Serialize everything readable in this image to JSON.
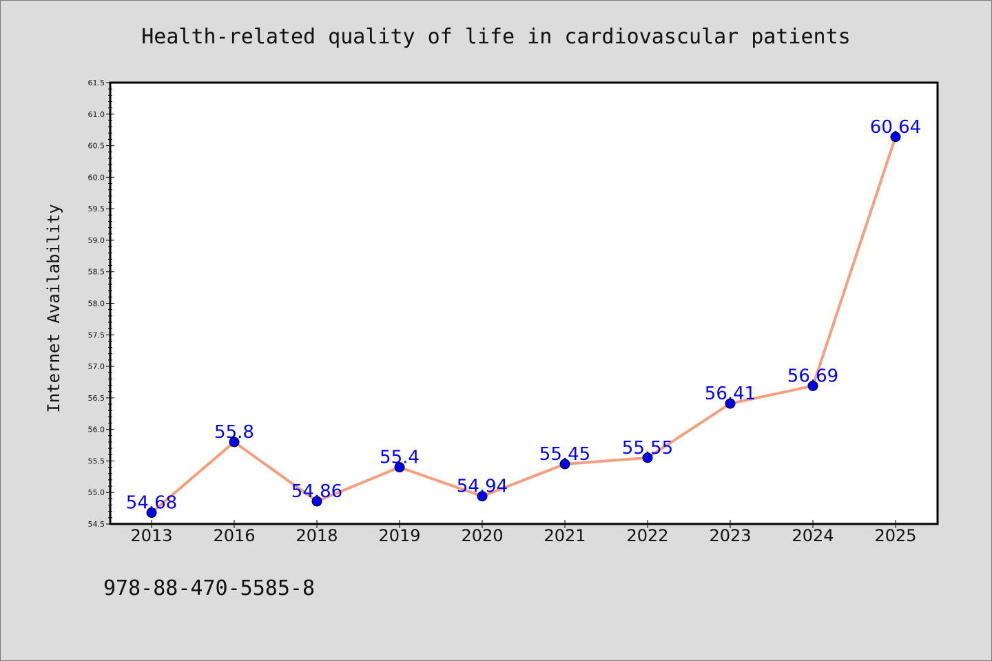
{
  "chart_data": {
    "type": "line",
    "title": "Health-related quality of life in cardiovascular patients",
    "xlabel": "",
    "ylabel": "Internet Availability",
    "categories": [
      "2013",
      "2016",
      "2018",
      "2019",
      "2020",
      "2021",
      "2022",
      "2023",
      "2024",
      "2025"
    ],
    "series": [
      {
        "values": [
          54.68,
          55.8,
          54.86,
          55.4,
          54.94,
          55.45,
          55.55,
          56.41,
          56.69,
          60.64
        ],
        "labels": [
          "54.68",
          "55.8",
          "54.86",
          "55.4",
          "54.94",
          "55.45",
          "55.55",
          "56.41",
          "56.69",
          "60.64"
        ],
        "line_color": "#f4a07f",
        "marker_color": "#0000ee"
      }
    ],
    "ylim": [
      54.5,
      61.5
    ],
    "yticks": [
      "54.5",
      "55.0",
      "55.5",
      "56.0",
      "56.5",
      "57.0",
      "57.5",
      "58.0",
      "58.5",
      "59.0",
      "59.5",
      "60.0",
      "60.5",
      "61.0",
      "61.5"
    ],
    "grid": false,
    "legend": "none"
  },
  "footer_text": "978-88-470-5585-8"
}
